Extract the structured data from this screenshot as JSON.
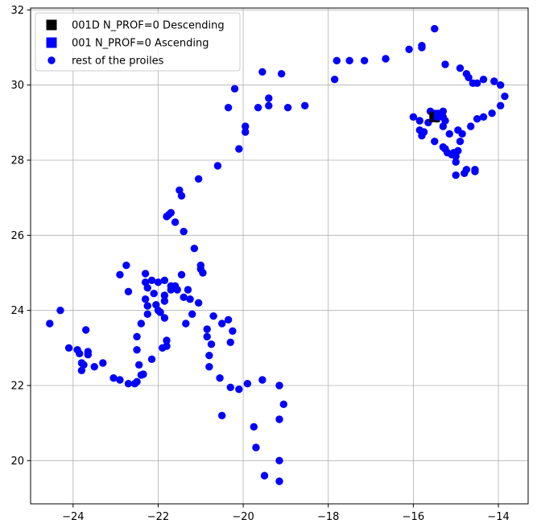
{
  "chart_data": {
    "type": "scatter",
    "title": "",
    "xlabel": "",
    "ylabel": "",
    "xlim": [
      -25.0,
      -13.3
    ],
    "ylim": [
      18.85,
      32.05
    ],
    "xticks": [
      -24,
      -22,
      -20,
      -18,
      -16,
      -14
    ],
    "xtick_labels": [
      "−24",
      "−22",
      "−20",
      "−18",
      "−16",
      "−14"
    ],
    "yticks": [
      20,
      22,
      24,
      26,
      28,
      30,
      32
    ],
    "ytick_labels": [
      "20",
      "22",
      "24",
      "26",
      "28",
      "30",
      "32"
    ],
    "grid": true,
    "legend_position": "top-left",
    "series": [
      {
        "name": "001D N_PROF=0 Descending",
        "marker": "square",
        "color": "#000000",
        "points": [
          [
            -15.5,
            29.15
          ]
        ]
      },
      {
        "name": "001 N_PROF=0 Ascending",
        "marker": "square",
        "color": "#0000ff",
        "points": [
          [
            -15.4,
            29.2
          ]
        ]
      },
      {
        "name": "rest of the proiles",
        "marker": "circle",
        "color": "#0000ff",
        "points": [
          [
            -24.55,
            23.65
          ],
          [
            -24.3,
            24.0
          ],
          [
            -24.1,
            23.0
          ],
          [
            -23.9,
            22.95
          ],
          [
            -23.85,
            22.85
          ],
          [
            -23.8,
            22.6
          ],
          [
            -23.8,
            22.4
          ],
          [
            -23.75,
            22.55
          ],
          [
            -23.7,
            23.48
          ],
          [
            -23.65,
            22.9
          ],
          [
            -23.65,
            22.82
          ],
          [
            -23.5,
            22.5
          ],
          [
            -23.3,
            22.6
          ],
          [
            -23.05,
            22.2
          ],
          [
            -22.9,
            22.15
          ],
          [
            -22.9,
            24.95
          ],
          [
            -22.75,
            25.2
          ],
          [
            -22.7,
            24.5
          ],
          [
            -22.7,
            22.05
          ],
          [
            -22.55,
            22.05
          ],
          [
            -22.5,
            22.1
          ],
          [
            -22.5,
            22.95
          ],
          [
            -22.5,
            23.3
          ],
          [
            -22.45,
            22.55
          ],
          [
            -22.4,
            22.28
          ],
          [
            -22.35,
            22.3
          ],
          [
            -22.4,
            23.65
          ],
          [
            -22.3,
            24.98
          ],
          [
            -22.3,
            24.75
          ],
          [
            -22.25,
            24.6
          ],
          [
            -22.3,
            24.3
          ],
          [
            -22.25,
            24.12
          ],
          [
            -22.25,
            23.9
          ],
          [
            -22.15,
            24.8
          ],
          [
            -22.15,
            22.7
          ],
          [
            -22.1,
            24.45
          ],
          [
            -22.05,
            24.15
          ],
          [
            -22.0,
            24.0
          ],
          [
            -21.95,
            23.95
          ],
          [
            -22.0,
            24.75
          ],
          [
            -21.85,
            24.4
          ],
          [
            -21.85,
            24.8
          ],
          [
            -21.85,
            24.25
          ],
          [
            -21.85,
            23.8
          ],
          [
            -21.9,
            23.0
          ],
          [
            -21.8,
            23.2
          ],
          [
            -21.8,
            23.05
          ],
          [
            -21.7,
            24.55
          ],
          [
            -21.7,
            24.65
          ],
          [
            -21.6,
            24.65
          ],
          [
            -21.55,
            24.55
          ],
          [
            -21.8,
            26.5
          ],
          [
            -21.75,
            26.55
          ],
          [
            -21.7,
            26.6
          ],
          [
            -21.6,
            26.35
          ],
          [
            -21.5,
            27.2
          ],
          [
            -21.45,
            27.05
          ],
          [
            -21.4,
            26.1
          ],
          [
            -21.45,
            24.95
          ],
          [
            -21.4,
            24.35
          ],
          [
            -21.35,
            23.65
          ],
          [
            -21.3,
            24.55
          ],
          [
            -21.25,
            24.3
          ],
          [
            -21.15,
            25.65
          ],
          [
            -21.2,
            23.9
          ],
          [
            -21.0,
            25.2
          ],
          [
            -21.0,
            25.1
          ],
          [
            -20.95,
            25.0
          ],
          [
            -21.05,
            24.2
          ],
          [
            -21.05,
            27.5
          ],
          [
            -20.85,
            23.3
          ],
          [
            -20.85,
            23.5
          ],
          [
            -20.8,
            22.8
          ],
          [
            -20.8,
            22.5
          ],
          [
            -20.75,
            23.1
          ],
          [
            -20.7,
            23.85
          ],
          [
            -20.6,
            27.85
          ],
          [
            -20.5,
            23.65
          ],
          [
            -20.55,
            22.2
          ],
          [
            -20.5,
            21.2
          ],
          [
            -20.35,
            23.75
          ],
          [
            -20.3,
            23.15
          ],
          [
            -20.25,
            23.45
          ],
          [
            -20.3,
            21.95
          ],
          [
            -20.35,
            29.4
          ],
          [
            -20.2,
            29.9
          ],
          [
            -20.1,
            28.3
          ],
          [
            -20.1,
            21.9
          ],
          [
            -19.95,
            28.9
          ],
          [
            -19.95,
            28.75
          ],
          [
            -19.9,
            22.05
          ],
          [
            -19.75,
            20.9
          ],
          [
            -19.7,
            20.35
          ],
          [
            -19.65,
            29.4
          ],
          [
            -19.55,
            22.15
          ],
          [
            -19.5,
            19.6
          ],
          [
            -19.55,
            30.35
          ],
          [
            -19.4,
            29.65
          ],
          [
            -19.4,
            29.45
          ],
          [
            -19.15,
            22.0
          ],
          [
            -19.15,
            21.1
          ],
          [
            -19.15,
            20.0
          ],
          [
            -19.15,
            19.45
          ],
          [
            -19.1,
            30.3
          ],
          [
            -19.05,
            21.5
          ],
          [
            -18.95,
            29.4
          ],
          [
            -18.55,
            29.45
          ],
          [
            -17.85,
            30.15
          ],
          [
            -17.8,
            30.65
          ],
          [
            -17.5,
            30.65
          ],
          [
            -17.15,
            30.65
          ],
          [
            -16.65,
            30.7
          ],
          [
            -16.1,
            30.95
          ],
          [
            -15.8,
            31.05
          ],
          [
            -15.8,
            31.0
          ],
          [
            -15.5,
            31.5
          ],
          [
            -15.25,
            30.55
          ],
          [
            -16.0,
            29.15
          ],
          [
            -15.85,
            29.05
          ],
          [
            -15.85,
            28.8
          ],
          [
            -15.8,
            28.65
          ],
          [
            -15.75,
            28.75
          ],
          [
            -15.65,
            29.0
          ],
          [
            -15.6,
            29.3
          ],
          [
            -15.55,
            29.25
          ],
          [
            -15.5,
            28.5
          ],
          [
            -15.45,
            29.1
          ],
          [
            -15.3,
            29.3
          ],
          [
            -15.3,
            29.15
          ],
          [
            -15.25,
            29.05
          ],
          [
            -15.3,
            28.9
          ],
          [
            -15.3,
            28.35
          ],
          [
            -15.25,
            28.3
          ],
          [
            -15.2,
            28.2
          ],
          [
            -15.15,
            28.7
          ],
          [
            -15.1,
            28.15
          ],
          [
            -15.05,
            28.2
          ],
          [
            -15.0,
            28.1
          ],
          [
            -15.0,
            27.95
          ],
          [
            -14.95,
            28.25
          ],
          [
            -14.9,
            28.5
          ],
          [
            -14.95,
            28.8
          ],
          [
            -14.85,
            28.7
          ],
          [
            -15.0,
            27.6
          ],
          [
            -14.8,
            27.65
          ],
          [
            -14.75,
            27.75
          ],
          [
            -14.65,
            28.9
          ],
          [
            -14.55,
            27.75
          ],
          [
            -14.55,
            27.7
          ],
          [
            -14.9,
            30.45
          ],
          [
            -14.75,
            30.3
          ],
          [
            -14.7,
            30.2
          ],
          [
            -14.6,
            30.05
          ],
          [
            -14.5,
            30.05
          ],
          [
            -14.5,
            29.1
          ],
          [
            -14.35,
            29.15
          ],
          [
            -14.35,
            30.15
          ],
          [
            -14.1,
            30.1
          ],
          [
            -14.15,
            29.25
          ],
          [
            -13.95,
            30.0
          ],
          [
            -13.95,
            29.45
          ],
          [
            -13.85,
            29.7
          ]
        ]
      }
    ]
  }
}
